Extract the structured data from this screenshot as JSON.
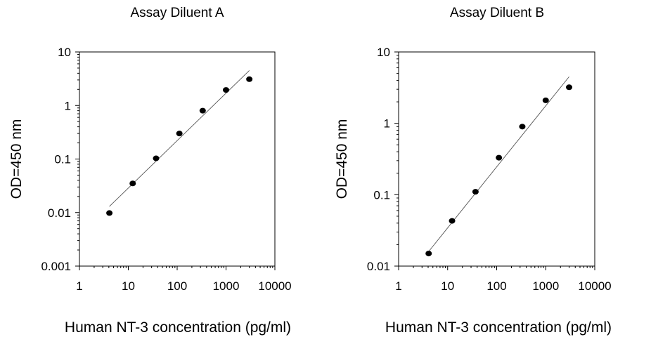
{
  "chart_data": [
    {
      "type": "scatter",
      "title": "Assay Diluent A",
      "xlabel": "Human NT-3  concentration (pg/ml)",
      "ylabel": "OD=450 nm",
      "x_scale": "log",
      "y_scale": "log",
      "xlim": [
        1,
        10000
      ],
      "ylim": [
        0.001,
        10
      ],
      "x_ticks": [
        "1",
        "10",
        "100",
        "1000",
        "10000"
      ],
      "y_ticks": [
        "0.001",
        "0.01",
        "0.1",
        "1",
        "10"
      ],
      "grid": false,
      "series": [
        {
          "x": [
            4.1,
            12.3,
            37,
            111,
            333,
            1000,
            3000
          ],
          "y": [
            0.0098,
            0.035,
            0.103,
            0.3,
            0.8,
            1.95,
            3.1
          ]
        }
      ],
      "fit_line": {
        "x": [
          4.1,
          3000
        ],
        "y": [
          0.013,
          4.5
        ]
      }
    },
    {
      "type": "scatter",
      "title": "Assay Diluent B",
      "xlabel": "Human NT-3  concentration (pg/ml)",
      "ylabel": "OD=450 nm",
      "x_scale": "log",
      "y_scale": "log",
      "xlim": [
        1,
        10000
      ],
      "ylim": [
        0.01,
        10
      ],
      "x_ticks": [
        "1",
        "10",
        "100",
        "1000",
        "10000"
      ],
      "y_ticks": [
        "0.01",
        "0.1",
        "1",
        "10"
      ],
      "grid": false,
      "series": [
        {
          "x": [
            4.1,
            12.3,
            37,
            111,
            333,
            1000,
            3000
          ],
          "y": [
            0.015,
            0.043,
            0.11,
            0.33,
            0.9,
            2.1,
            3.2
          ]
        }
      ],
      "fit_line": {
        "x": [
          4.1,
          3000
        ],
        "y": [
          0.016,
          4.5
        ]
      }
    }
  ]
}
